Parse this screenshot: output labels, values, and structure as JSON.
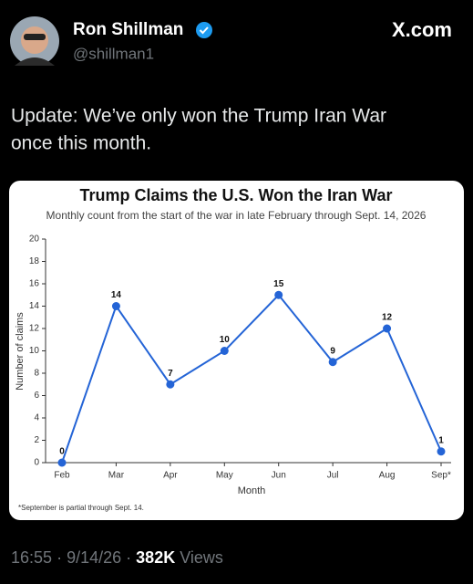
{
  "author": {
    "name": "Ron Shillman",
    "handle": "@shillman1"
  },
  "brand": "X.com",
  "tweet_lines": [
    "Update: We’ve only won the Trump Iran War",
    "once this month."
  ],
  "footer": {
    "time": "16:55",
    "separator": "·",
    "date": "9/14/26",
    "views": "382K",
    "views_label": "Views"
  },
  "chart_data": {
    "type": "line",
    "title": "Trump Claims the U.S. Won the Iran War",
    "subtitle": "Monthly count from the start of the war in late February through Sept. 14, 2026",
    "x_label": "Month",
    "y_label": "Number of claims",
    "footnote": "*September is partial through Sept. 14.",
    "categories": [
      "Feb",
      "Mar",
      "Apr",
      "May",
      "Jun",
      "Jul",
      "Aug",
      "Sep*"
    ],
    "values": [
      0,
      14,
      7,
      10,
      15,
      9,
      12,
      1
    ],
    "color": "#2464d6",
    "ylim": [
      0,
      20
    ],
    "yticks": [
      0,
      2,
      4,
      6,
      8,
      10,
      12,
      14,
      16,
      18,
      20
    ]
  }
}
